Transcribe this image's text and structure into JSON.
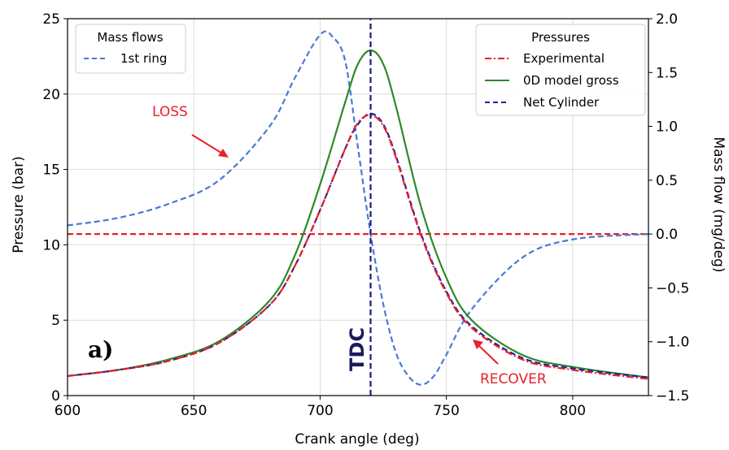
{
  "chart_data": {
    "type": "line",
    "xlabel": "Crank angle (deg)",
    "ylabel": "Pressure (bar)",
    "y2label": "Mass flow (mg/deg)",
    "xlim": [
      600,
      830
    ],
    "ylim": [
      0,
      25
    ],
    "y2lim": [
      -1.5,
      2.0
    ],
    "xticks": [
      600,
      650,
      700,
      750,
      800
    ],
    "yticks": [
      0,
      5,
      10,
      15,
      20,
      25
    ],
    "y2ticks": [
      "2.0",
      "1.5",
      "1.0",
      "0.5",
      "0.0",
      "−0.5",
      "−1.0",
      "−1.5"
    ],
    "y2tick_values": [
      2.0,
      1.5,
      1.0,
      0.5,
      0.0,
      -0.5,
      -1.0,
      -1.5
    ],
    "grid": true,
    "legends": [
      {
        "title": "Mass flows",
        "placement": "top-left",
        "entries": [
          "1st ring"
        ]
      },
      {
        "title": "Pressures",
        "placement": "top-right",
        "entries": [
          "Experimental",
          "0D model gross",
          "Net Cylinder"
        ]
      }
    ],
    "series": [
      {
        "name": "Experimental",
        "axis": "left",
        "color": "#e8202a",
        "style": "dashdot",
        "x": [
          600,
          620,
          640,
          660,
          680,
          690,
          700,
          710,
          715,
          720,
          725,
          730,
          740,
          750,
          760,
          780,
          800,
          830
        ],
        "y": [
          1.3,
          1.7,
          2.3,
          3.5,
          6.0,
          8.6,
          12.3,
          16.4,
          18.1,
          18.6,
          17.9,
          15.8,
          10.6,
          6.8,
          4.5,
          2.4,
          1.7,
          1.1
        ]
      },
      {
        "name": "0D model gross",
        "axis": "left",
        "color": "#2a8a2a",
        "style": "solid",
        "x": [
          600,
          620,
          640,
          660,
          680,
          690,
          700,
          710,
          715,
          720,
          725,
          730,
          740,
          750,
          760,
          780,
          800,
          830
        ],
        "y": [
          1.3,
          1.7,
          2.4,
          3.6,
          6.3,
          9.3,
          14.0,
          19.5,
          22.0,
          22.9,
          22.0,
          19.2,
          12.5,
          7.8,
          5.0,
          2.7,
          1.9,
          1.2
        ]
      },
      {
        "name": "Net Cylinder",
        "axis": "left",
        "color": "#1f1f9f",
        "style": "dashed",
        "x": [
          600,
          620,
          640,
          660,
          680,
          690,
          700,
          710,
          715,
          720,
          725,
          730,
          740,
          750,
          760,
          780,
          800,
          830
        ],
        "y": [
          1.3,
          1.7,
          2.3,
          3.5,
          6.0,
          8.6,
          12.3,
          16.4,
          18.0,
          18.7,
          18.0,
          15.9,
          10.7,
          6.9,
          4.6,
          2.5,
          1.8,
          1.2
        ]
      },
      {
        "name": "1st ring",
        "axis": "right",
        "color": "#4b78d6",
        "style": "dashed",
        "x": [
          600,
          620,
          640,
          660,
          680,
          690,
          700,
          705,
          710,
          715,
          720,
          725,
          730,
          735,
          740,
          745,
          750,
          760,
          780,
          800,
          830
        ],
        "y": [
          0.08,
          0.15,
          0.28,
          0.5,
          1.0,
          1.45,
          1.85,
          1.83,
          1.6,
          0.8,
          0.0,
          -0.65,
          -1.1,
          -1.32,
          -1.4,
          -1.32,
          -1.12,
          -0.7,
          -0.22,
          -0.05,
          0.0
        ]
      },
      {
        "name": "",
        "axis": "right",
        "color": "#e8202a",
        "style": "dashed",
        "x": [
          600,
          830
        ],
        "y": [
          0.0,
          0.0
        ]
      },
      {
        "name": "",
        "axis": "left",
        "color": "#1a1a7a",
        "style": "dashed",
        "vertical": true,
        "x": [
          720,
          720
        ],
        "y": [
          0,
          25
        ]
      }
    ],
    "annotations": [
      {
        "text": "LOSS",
        "color": "#e8202a"
      },
      {
        "text": "RECOVER",
        "color": "#e8202a"
      },
      {
        "text": "TDC",
        "color": "#1a1a5e"
      },
      {
        "text": "a)",
        "color": "#000000"
      }
    ]
  }
}
